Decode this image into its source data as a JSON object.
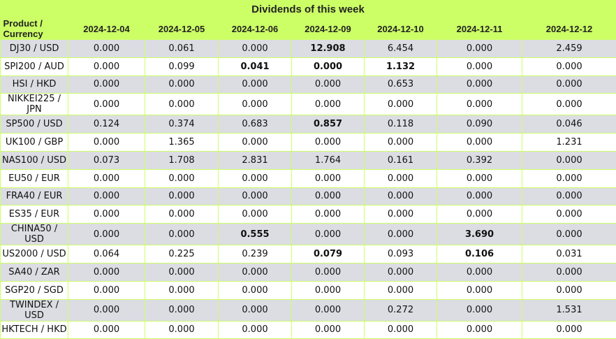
{
  "title": "Dividends of this week",
  "header": {
    "product": "Product / Currency",
    "dates": [
      "2024-12-04",
      "2024-12-05",
      "2024-12-06",
      "2024-12-09",
      "2024-12-10",
      "2024-12-11",
      "2024-12-12"
    ]
  },
  "rows": [
    {
      "product": "DJ30 / USD",
      "values": [
        "0.000",
        "0.061",
        "0.000",
        "12.908",
        "6.454",
        "0.000",
        "2.459"
      ],
      "bold": [
        false,
        false,
        false,
        true,
        false,
        false,
        false
      ]
    },
    {
      "product": "SPI200 / AUD",
      "values": [
        "0.000",
        "0.099",
        "0.041",
        "0.000",
        "1.132",
        "0.000",
        "0.000"
      ],
      "bold": [
        false,
        false,
        true,
        true,
        true,
        false,
        false
      ]
    },
    {
      "product": "HSI / HKD",
      "values": [
        "0.000",
        "0.000",
        "0.000",
        "0.000",
        "0.653",
        "0.000",
        "0.000"
      ],
      "bold": [
        false,
        false,
        false,
        false,
        false,
        false,
        false
      ]
    },
    {
      "product": "NIKKEI225 / JPN",
      "values": [
        "0.000",
        "0.000",
        "0.000",
        "0.000",
        "0.000",
        "0.000",
        "0.000"
      ],
      "bold": [
        false,
        false,
        false,
        false,
        false,
        false,
        false
      ]
    },
    {
      "product": "SP500 / USD",
      "values": [
        "0.124",
        "0.374",
        "0.683",
        "0.857",
        "0.118",
        "0.090",
        "0.046"
      ],
      "bold": [
        false,
        false,
        false,
        true,
        false,
        false,
        false
      ]
    },
    {
      "product": "UK100 / GBP",
      "values": [
        "0.000",
        "1.365",
        "0.000",
        "0.000",
        "0.000",
        "0.000",
        "1.231"
      ],
      "bold": [
        false,
        false,
        false,
        false,
        false,
        false,
        false
      ]
    },
    {
      "product": "NAS100 / USD",
      "values": [
        "0.073",
        "1.708",
        "2.831",
        "1.764",
        "0.161",
        "0.392",
        "0.000"
      ],
      "bold": [
        false,
        false,
        false,
        false,
        false,
        false,
        false
      ]
    },
    {
      "product": "EU50 / EUR",
      "values": [
        "0.000",
        "0.000",
        "0.000",
        "0.000",
        "0.000",
        "0.000",
        "0.000"
      ],
      "bold": [
        false,
        false,
        false,
        false,
        false,
        false,
        false
      ]
    },
    {
      "product": "FRA40 / EUR",
      "values": [
        "0.000",
        "0.000",
        "0.000",
        "0.000",
        "0.000",
        "0.000",
        "0.000"
      ],
      "bold": [
        false,
        false,
        false,
        false,
        false,
        false,
        false
      ]
    },
    {
      "product": "ES35 / EUR",
      "values": [
        "0.000",
        "0.000",
        "0.000",
        "0.000",
        "0.000",
        "0.000",
        "0.000"
      ],
      "bold": [
        false,
        false,
        false,
        false,
        false,
        false,
        false
      ]
    },
    {
      "product": "CHINA50 / USD",
      "values": [
        "0.000",
        "0.000",
        "0.555",
        "0.000",
        "0.000",
        "3.690",
        "0.000"
      ],
      "bold": [
        false,
        false,
        true,
        false,
        false,
        true,
        false
      ]
    },
    {
      "product": "US2000 / USD",
      "values": [
        "0.064",
        "0.225",
        "0.239",
        "0.079",
        "0.093",
        "0.106",
        "0.031"
      ],
      "bold": [
        false,
        false,
        false,
        true,
        false,
        true,
        false
      ]
    },
    {
      "product": "SA40 / ZAR",
      "values": [
        "0.000",
        "0.000",
        "0.000",
        "0.000",
        "0.000",
        "0.000",
        "0.000"
      ],
      "bold": [
        false,
        false,
        false,
        false,
        false,
        false,
        false
      ]
    },
    {
      "product": "SGP20 / SGD",
      "values": [
        "0.000",
        "0.000",
        "0.000",
        "0.000",
        "0.000",
        "0.000",
        "0.000"
      ],
      "bold": [
        false,
        false,
        false,
        false,
        false,
        false,
        false
      ]
    },
    {
      "product": "TWINDEX / USD",
      "values": [
        "0.000",
        "0.000",
        "0.000",
        "0.000",
        "0.272",
        "0.000",
        "1.531"
      ],
      "bold": [
        false,
        false,
        false,
        false,
        false,
        false,
        false
      ]
    },
    {
      "product": "HKTECH / HKD",
      "values": [
        "0.000",
        "0.000",
        "0.000",
        "0.000",
        "0.000",
        "0.000",
        "0.000"
      ],
      "bold": [
        false,
        false,
        false,
        false,
        false,
        false,
        false
      ]
    }
  ]
}
